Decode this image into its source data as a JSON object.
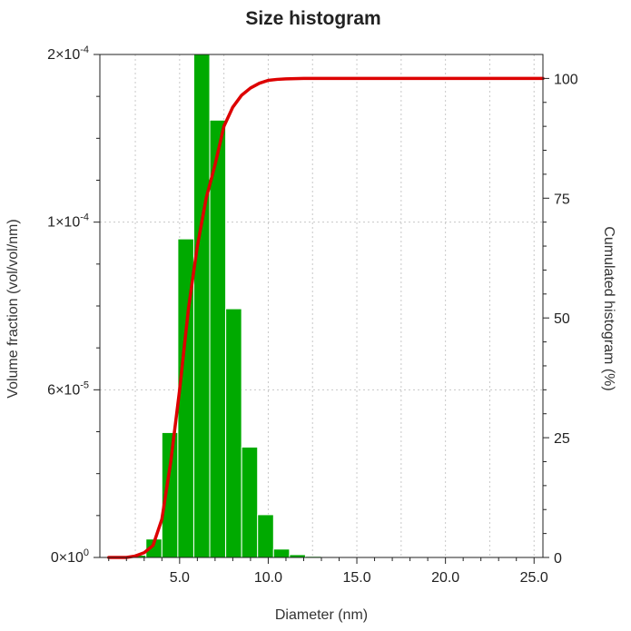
{
  "chart_data": {
    "type": "bar",
    "title": "Size histogram",
    "xlabel": "Diameter (nm)",
    "ylabel": "Volume fraction (vol/vol/nm)",
    "y2label": "Cumulated histogram (%)",
    "xlim": [
      0.5,
      25.5
    ],
    "ylim": [
      0,
      0.00018
    ],
    "y2lim": [
      0,
      105
    ],
    "x_ticks": [
      {
        "value": 5,
        "label": "5.0"
      },
      {
        "value": 10,
        "label": "10.0"
      },
      {
        "value": 15,
        "label": "15.0"
      },
      {
        "value": 20,
        "label": "20.0"
      },
      {
        "value": 25,
        "label": "25.0"
      }
    ],
    "y_ticks": [
      {
        "value": 0,
        "mantissa": "0",
        "exp": "0"
      },
      {
        "value": 6e-05,
        "mantissa": "6",
        "exp": "-5"
      },
      {
        "value": 0.00012,
        "mantissa": "1",
        "exp": "-4"
      },
      {
        "value": 0.00018,
        "mantissa": "2",
        "exp": "-4"
      }
    ],
    "y2_ticks": [
      0,
      25,
      50,
      75,
      100
    ],
    "bar_width": 0.9,
    "bars": {
      "name": "Volume fraction",
      "color": "#00aa00",
      "x": [
        2.65,
        3.55,
        4.45,
        5.35,
        6.25,
        7.15,
        8.05,
        8.95,
        9.85,
        10.75,
        11.65,
        12.55,
        13.45
      ],
      "values": [
        8e-07,
        6.6e-06,
        4.47e-05,
        0.000114,
        0.000181,
        0.0001565,
        8.9e-05,
        3.95e-05,
        1.53e-05,
        3e-06,
        1e-06,
        4e-07,
        1e-07
      ]
    },
    "cumulative": {
      "name": "Cumulated histogram",
      "color": "#dd0000",
      "x": [
        1.0,
        2.0,
        2.5,
        3.0,
        3.5,
        4.0,
        4.5,
        5.0,
        5.5,
        6.0,
        6.5,
        7.0,
        7.5,
        8.0,
        8.5,
        9.0,
        9.5,
        10.0,
        10.5,
        11.0,
        12.0,
        13.0,
        15.0,
        20.0,
        25.5
      ],
      "values": [
        0,
        0,
        0.3,
        1,
        2.5,
        8,
        20,
        35,
        52,
        65,
        75,
        82,
        90,
        94,
        96.5,
        98,
        99,
        99.6,
        99.8,
        99.9,
        100,
        100,
        100,
        100,
        100
      ]
    }
  }
}
